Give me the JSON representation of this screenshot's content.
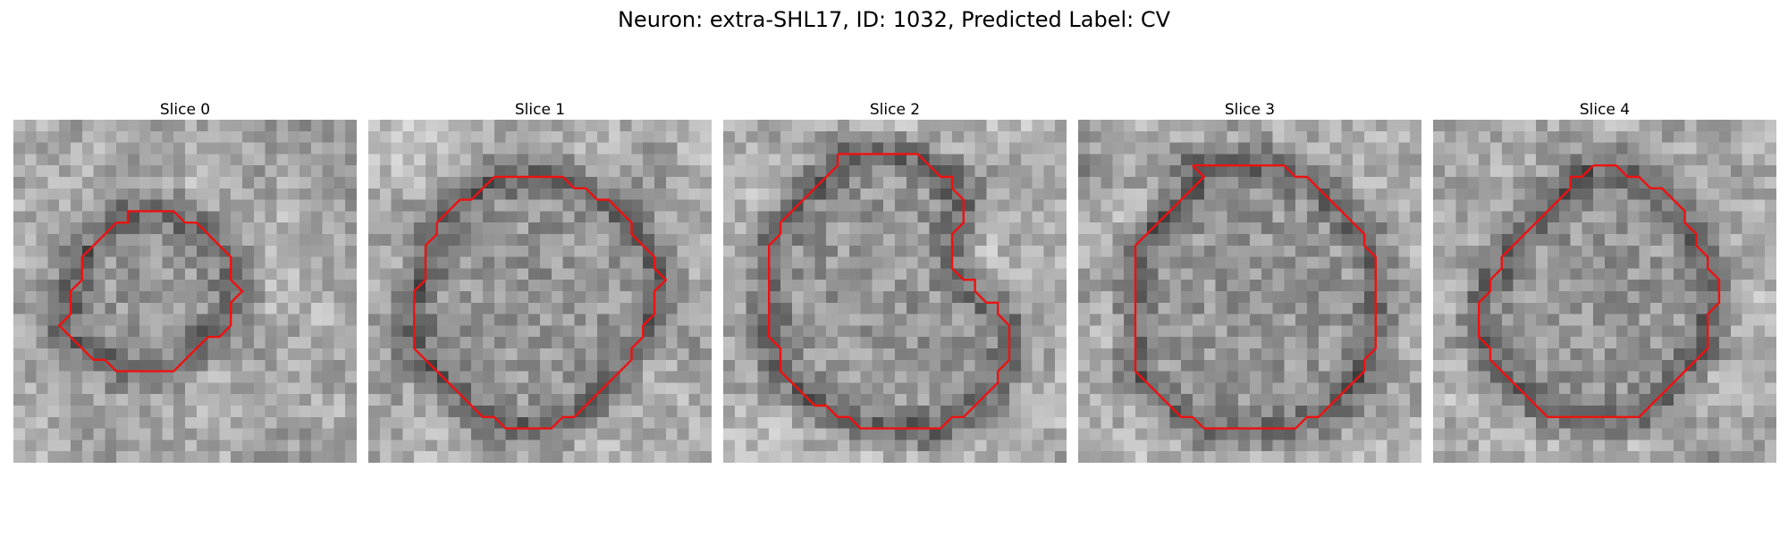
{
  "figure": {
    "title": "Neuron: extra-SHL17, ID: 1032, Predicted Label: CV"
  },
  "panels": [
    {
      "title": "Slice 0",
      "contour": [
        [
          10,
          8
        ],
        [
          11,
          8
        ],
        [
          12,
          8
        ],
        [
          13,
          8
        ],
        [
          14,
          8
        ],
        [
          15,
          9
        ],
        [
          16,
          9
        ],
        [
          17,
          10
        ],
        [
          18,
          11
        ],
        [
          19,
          12
        ],
        [
          19,
          13
        ],
        [
          19,
          14
        ],
        [
          20,
          15
        ],
        [
          19,
          16
        ],
        [
          19,
          17
        ],
        [
          19,
          18
        ],
        [
          18,
          19
        ],
        [
          17,
          19
        ],
        [
          16,
          20
        ],
        [
          15,
          21
        ],
        [
          14,
          22
        ],
        [
          13,
          22
        ],
        [
          12,
          22
        ],
        [
          11,
          22
        ],
        [
          10,
          22
        ],
        [
          9,
          22
        ],
        [
          8,
          21
        ],
        [
          7,
          21
        ],
        [
          6,
          20
        ],
        [
          5,
          19
        ],
        [
          4,
          18
        ],
        [
          5,
          17
        ],
        [
          5,
          16
        ],
        [
          5,
          15
        ],
        [
          6,
          14
        ],
        [
          6,
          13
        ],
        [
          6,
          12
        ],
        [
          7,
          11
        ],
        [
          8,
          10
        ],
        [
          9,
          9
        ],
        [
          10,
          9
        ],
        [
          10,
          8
        ]
      ]
    },
    {
      "title": "Slice 1",
      "contour": [
        [
          11,
          5
        ],
        [
          12,
          5
        ],
        [
          13,
          5
        ],
        [
          14,
          5
        ],
        [
          15,
          5
        ],
        [
          16,
          5
        ],
        [
          17,
          5
        ],
        [
          18,
          6
        ],
        [
          19,
          6
        ],
        [
          20,
          7
        ],
        [
          21,
          7
        ],
        [
          22,
          8
        ],
        [
          23,
          9
        ],
        [
          23,
          10
        ],
        [
          24,
          11
        ],
        [
          25,
          12
        ],
        [
          25,
          13
        ],
        [
          26,
          14
        ],
        [
          25,
          15
        ],
        [
          25,
          16
        ],
        [
          25,
          17
        ],
        [
          24,
          18
        ],
        [
          24,
          19
        ],
        [
          23,
          20
        ],
        [
          23,
          21
        ],
        [
          22,
          22
        ],
        [
          21,
          23
        ],
        [
          20,
          24
        ],
        [
          19,
          25
        ],
        [
          18,
          26
        ],
        [
          17,
          26
        ],
        [
          16,
          27
        ],
        [
          15,
          27
        ],
        [
          14,
          27
        ],
        [
          13,
          27
        ],
        [
          12,
          27
        ],
        [
          11,
          26
        ],
        [
          10,
          26
        ],
        [
          9,
          25
        ],
        [
          8,
          24
        ],
        [
          7,
          23
        ],
        [
          6,
          22
        ],
        [
          5,
          21
        ],
        [
          4,
          20
        ],
        [
          4,
          19
        ],
        [
          4,
          18
        ],
        [
          4,
          17
        ],
        [
          4,
          16
        ],
        [
          4,
          15
        ],
        [
          5,
          14
        ],
        [
          5,
          13
        ],
        [
          5,
          12
        ],
        [
          5,
          11
        ],
        [
          6,
          10
        ],
        [
          6,
          9
        ],
        [
          7,
          8
        ],
        [
          8,
          7
        ],
        [
          9,
          7
        ],
        [
          10,
          6
        ],
        [
          11,
          5
        ]
      ]
    },
    {
      "title": "Slice 2",
      "contour": [
        [
          10,
          3
        ],
        [
          11,
          3
        ],
        [
          12,
          3
        ],
        [
          13,
          3
        ],
        [
          14,
          3
        ],
        [
          15,
          3
        ],
        [
          16,
          3
        ],
        [
          17,
          3
        ],
        [
          18,
          4
        ],
        [
          19,
          5
        ],
        [
          20,
          5
        ],
        [
          20,
          6
        ],
        [
          21,
          7
        ],
        [
          21,
          8
        ],
        [
          21,
          9
        ],
        [
          20,
          10
        ],
        [
          20,
          11
        ],
        [
          20,
          12
        ],
        [
          20,
          13
        ],
        [
          21,
          14
        ],
        [
          22,
          14
        ],
        [
          22,
          15
        ],
        [
          23,
          16
        ],
        [
          24,
          16
        ],
        [
          24,
          17
        ],
        [
          25,
          18
        ],
        [
          25,
          19
        ],
        [
          25,
          20
        ],
        [
          25,
          21
        ],
        [
          24,
          22
        ],
        [
          24,
          23
        ],
        [
          23,
          24
        ],
        [
          22,
          25
        ],
        [
          21,
          26
        ],
        [
          20,
          26
        ],
        [
          19,
          27
        ],
        [
          18,
          27
        ],
        [
          17,
          27
        ],
        [
          16,
          27
        ],
        [
          15,
          27
        ],
        [
          14,
          27
        ],
        [
          13,
          27
        ],
        [
          12,
          27
        ],
        [
          11,
          26
        ],
        [
          10,
          26
        ],
        [
          9,
          25
        ],
        [
          8,
          25
        ],
        [
          7,
          24
        ],
        [
          6,
          23
        ],
        [
          5,
          22
        ],
        [
          5,
          21
        ],
        [
          5,
          20
        ],
        [
          4,
          19
        ],
        [
          4,
          18
        ],
        [
          4,
          17
        ],
        [
          4,
          16
        ],
        [
          4,
          15
        ],
        [
          4,
          14
        ],
        [
          4,
          13
        ],
        [
          4,
          12
        ],
        [
          4,
          11
        ],
        [
          5,
          10
        ],
        [
          5,
          9
        ],
        [
          6,
          8
        ],
        [
          7,
          7
        ],
        [
          8,
          6
        ],
        [
          9,
          5
        ],
        [
          10,
          4
        ],
        [
          10,
          3
        ]
      ]
    },
    {
      "title": "Slice 3",
      "contour": [
        [
          10,
          4
        ],
        [
          11,
          4
        ],
        [
          12,
          4
        ],
        [
          13,
          4
        ],
        [
          14,
          4
        ],
        [
          15,
          4
        ],
        [
          16,
          4
        ],
        [
          17,
          4
        ],
        [
          18,
          4
        ],
        [
          19,
          5
        ],
        [
          20,
          5
        ],
        [
          21,
          6
        ],
        [
          22,
          7
        ],
        [
          23,
          8
        ],
        [
          24,
          9
        ],
        [
          25,
          10
        ],
        [
          25,
          11
        ],
        [
          26,
          12
        ],
        [
          26,
          13
        ],
        [
          26,
          14
        ],
        [
          26,
          15
        ],
        [
          26,
          16
        ],
        [
          26,
          17
        ],
        [
          26,
          18
        ],
        [
          26,
          19
        ],
        [
          26,
          20
        ],
        [
          25,
          21
        ],
        [
          25,
          22
        ],
        [
          24,
          23
        ],
        [
          23,
          24
        ],
        [
          22,
          25
        ],
        [
          21,
          26
        ],
        [
          20,
          26
        ],
        [
          19,
          27
        ],
        [
          18,
          27
        ],
        [
          17,
          27
        ],
        [
          16,
          27
        ],
        [
          15,
          27
        ],
        [
          14,
          27
        ],
        [
          13,
          27
        ],
        [
          12,
          27
        ],
        [
          11,
          27
        ],
        [
          10,
          26
        ],
        [
          9,
          26
        ],
        [
          8,
          25
        ],
        [
          7,
          24
        ],
        [
          6,
          23
        ],
        [
          5,
          22
        ],
        [
          5,
          21
        ],
        [
          5,
          20
        ],
        [
          5,
          19
        ],
        [
          5,
          18
        ],
        [
          5,
          17
        ],
        [
          5,
          16
        ],
        [
          5,
          15
        ],
        [
          5,
          14
        ],
        [
          5,
          13
        ],
        [
          5,
          12
        ],
        [
          5,
          11
        ],
        [
          6,
          10
        ],
        [
          7,
          9
        ],
        [
          8,
          8
        ],
        [
          9,
          7
        ],
        [
          10,
          6
        ],
        [
          11,
          5
        ],
        [
          10,
          4
        ]
      ]
    },
    {
      "title": "Slice 4",
      "contour": [
        [
          14,
          4
        ],
        [
          15,
          4
        ],
        [
          16,
          4
        ],
        [
          17,
          5
        ],
        [
          18,
          5
        ],
        [
          19,
          6
        ],
        [
          20,
          6
        ],
        [
          21,
          7
        ],
        [
          22,
          8
        ],
        [
          22,
          9
        ],
        [
          23,
          10
        ],
        [
          23,
          11
        ],
        [
          24,
          12
        ],
        [
          24,
          13
        ],
        [
          25,
          14
        ],
        [
          25,
          15
        ],
        [
          25,
          16
        ],
        [
          24,
          17
        ],
        [
          24,
          18
        ],
        [
          24,
          19
        ],
        [
          24,
          20
        ],
        [
          23,
          21
        ],
        [
          22,
          22
        ],
        [
          21,
          23
        ],
        [
          20,
          24
        ],
        [
          19,
          25
        ],
        [
          18,
          26
        ],
        [
          17,
          26
        ],
        [
          16,
          26
        ],
        [
          15,
          26
        ],
        [
          14,
          26
        ],
        [
          13,
          26
        ],
        [
          12,
          26
        ],
        [
          11,
          26
        ],
        [
          10,
          26
        ],
        [
          9,
          25
        ],
        [
          8,
          24
        ],
        [
          7,
          23
        ],
        [
          6,
          22
        ],
        [
          5,
          21
        ],
        [
          5,
          20
        ],
        [
          4,
          19
        ],
        [
          4,
          18
        ],
        [
          4,
          17
        ],
        [
          4,
          16
        ],
        [
          5,
          15
        ],
        [
          5,
          14
        ],
        [
          6,
          13
        ],
        [
          6,
          12
        ],
        [
          7,
          11
        ],
        [
          8,
          10
        ],
        [
          9,
          9
        ],
        [
          10,
          8
        ],
        [
          11,
          7
        ],
        [
          12,
          6
        ],
        [
          12,
          5
        ],
        [
          13,
          5
        ],
        [
          14,
          4
        ]
      ]
    }
  ]
}
